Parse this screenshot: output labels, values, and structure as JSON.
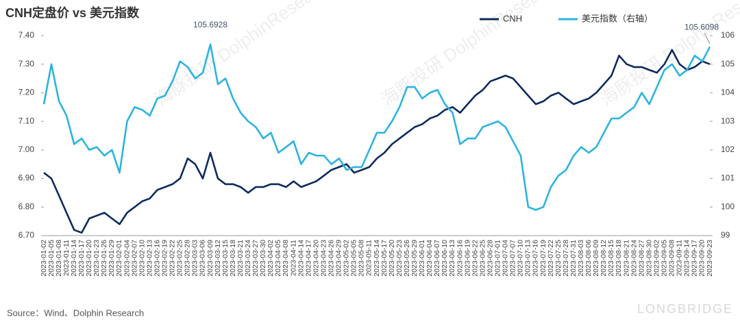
{
  "chart_data": {
    "type": "line",
    "title": "CNH定盘价 vs 美元指数",
    "source": "Source：Wind、Dolphin Research",
    "watermark": "海豚投研 DolphinResearch",
    "brand": "LONGBRIDGE",
    "categories": [
      "2023-01-02",
      "2023-01-05",
      "2023-01-08",
      "2023-01-11",
      "2023-01-14",
      "2023-01-17",
      "2023-01-20",
      "2023-01-23",
      "2023-01-26",
      "2023-01-29",
      "2023-02-01",
      "2023-02-04",
      "2023-02-07",
      "2023-02-10",
      "2023-02-13",
      "2023-02-16",
      "2023-02-19",
      "2023-02-22",
      "2023-02-25",
      "2023-02-28",
      "2023-03-03",
      "2023-03-06",
      "2023-03-09",
      "2023-03-12",
      "2023-03-15",
      "2023-03-18",
      "2023-03-21",
      "2023-03-24",
      "2023-03-27",
      "2023-03-30",
      "2023-04-02",
      "2023-04-05",
      "2023-04-08",
      "2023-04-11",
      "2023-04-14",
      "2023-04-17",
      "2023-04-20",
      "2023-04-23",
      "2023-04-26",
      "2023-04-29",
      "2023-05-02",
      "2023-05-05",
      "2023-05-08",
      "2023-05-11",
      "2023-05-14",
      "2023-05-17",
      "2023-05-20",
      "2023-05-23",
      "2023-05-26",
      "2023-05-29",
      "2023-06-01",
      "2023-06-04",
      "2023-06-07",
      "2023-06-10",
      "2023-06-13",
      "2023-06-16",
      "2023-06-19",
      "2023-06-22",
      "2023-06-25",
      "2023-06-28",
      "2023-07-01",
      "2023-07-04",
      "2023-07-07",
      "2023-07-10",
      "2023-07-13",
      "2023-07-16",
      "2023-07-19",
      "2023-07-22",
      "2023-07-25",
      "2023-07-28",
      "2023-07-31",
      "2023-08-03",
      "2023-08-06",
      "2023-08-09",
      "2023-08-12",
      "2023-08-15",
      "2023-08-18",
      "2023-08-21",
      "2023-08-24",
      "2023-08-27",
      "2023-08-30",
      "2023-09-02",
      "2023-09-05",
      "2023-09-08",
      "2023-09-11",
      "2023-09-14",
      "2023-09-17",
      "2023-09-20",
      "2023-09-23"
    ],
    "series": [
      {
        "name": "CNH",
        "color": "#0d2a5c",
        "values": [
          6.92,
          6.9,
          6.84,
          6.78,
          6.72,
          6.71,
          6.76,
          6.77,
          6.78,
          6.76,
          6.74,
          6.78,
          6.8,
          6.82,
          6.83,
          6.86,
          6.87,
          6.88,
          6.9,
          6.97,
          6.95,
          6.9,
          6.99,
          6.9,
          6.88,
          6.88,
          6.87,
          6.85,
          6.87,
          6.87,
          6.88,
          6.88,
          6.87,
          6.89,
          6.87,
          6.88,
          6.89,
          6.91,
          6.93,
          6.94,
          6.95,
          6.92,
          6.93,
          6.94,
          6.97,
          6.99,
          7.02,
          7.04,
          7.06,
          7.08,
          7.09,
          7.11,
          7.12,
          7.14,
          7.15,
          7.13,
          7.16,
          7.19,
          7.21,
          7.24,
          7.25,
          7.26,
          7.25,
          7.22,
          7.19,
          7.16,
          7.17,
          7.19,
          7.2,
          7.18,
          7.16,
          7.17,
          7.18,
          7.2,
          7.23,
          7.26,
          7.33,
          7.3,
          7.29,
          7.29,
          7.28,
          7.27,
          7.3,
          7.35,
          7.3,
          7.28,
          7.29,
          7.31,
          7.3
        ]
      },
      {
        "name": "美元指数（右轴）",
        "color": "#2bb3e0",
        "axis": "y2",
        "values": [
          103.6,
          105.0,
          103.7,
          103.2,
          102.2,
          102.4,
          102.0,
          102.1,
          101.8,
          102.0,
          101.2,
          103.0,
          103.5,
          103.4,
          103.2,
          103.8,
          103.9,
          104.4,
          105.1,
          104.9,
          104.5,
          104.7,
          105.6928,
          104.3,
          104.5,
          103.8,
          103.3,
          103.0,
          102.8,
          102.4,
          102.6,
          101.9,
          102.1,
          102.3,
          101.5,
          101.9,
          101.8,
          101.8,
          101.5,
          101.7,
          101.3,
          101.4,
          101.4,
          102.0,
          102.6,
          102.6,
          103.0,
          103.5,
          104.2,
          104.2,
          103.8,
          104.0,
          104.1,
          103.6,
          103.3,
          102.2,
          102.4,
          102.4,
          102.8,
          102.9,
          103.0,
          102.8,
          102.3,
          101.8,
          100.0,
          99.9,
          100.0,
          100.7,
          101.1,
          101.3,
          101.8,
          102.1,
          101.9,
          102.1,
          102.6,
          103.1,
          103.1,
          103.3,
          103.5,
          104.0,
          103.6,
          104.2,
          104.8,
          105.0,
          104.6,
          104.8,
          105.3,
          105.1,
          105.6098
        ],
        "value_labels": [
          null,
          null,
          null,
          null,
          null,
          null,
          null,
          null,
          null,
          null,
          null,
          null,
          null,
          null,
          null,
          null,
          null,
          null,
          null,
          null,
          null,
          null,
          "105.6928",
          null,
          null,
          null,
          null,
          null,
          null,
          null,
          null,
          null,
          null,
          null,
          null,
          null,
          null,
          null,
          null,
          null,
          null,
          null,
          null,
          null,
          null,
          null,
          null,
          null,
          null,
          null,
          null,
          null,
          null,
          null,
          null,
          null,
          null,
          null,
          null,
          null,
          null,
          null,
          null,
          null,
          null,
          null,
          null,
          null,
          null,
          null,
          null,
          null,
          null,
          null,
          null,
          null,
          null,
          null,
          null,
          null,
          null,
          null,
          null,
          null,
          null,
          null,
          null,
          null,
          "105.6098"
        ]
      }
    ],
    "ylim": [
      6.7,
      7.4
    ],
    "yticks": [
      {
        "value": 6.7,
        "label": "6.70"
      },
      {
        "value": 6.8,
        "label": "6.80"
      },
      {
        "value": 6.9,
        "label": "6.90"
      },
      {
        "value": 7.0,
        "label": "7.00"
      },
      {
        "value": 7.1,
        "label": "7.10"
      },
      {
        "value": 7.2,
        "label": "7.20"
      },
      {
        "value": 7.3,
        "label": "7.30"
      },
      {
        "value": 7.4,
        "label": "7.40"
      }
    ],
    "y2lim": [
      99,
      106
    ],
    "y2ticks": [
      99,
      100,
      101,
      102,
      103,
      104,
      105,
      106
    ],
    "grid": false,
    "legend": "top-right"
  }
}
